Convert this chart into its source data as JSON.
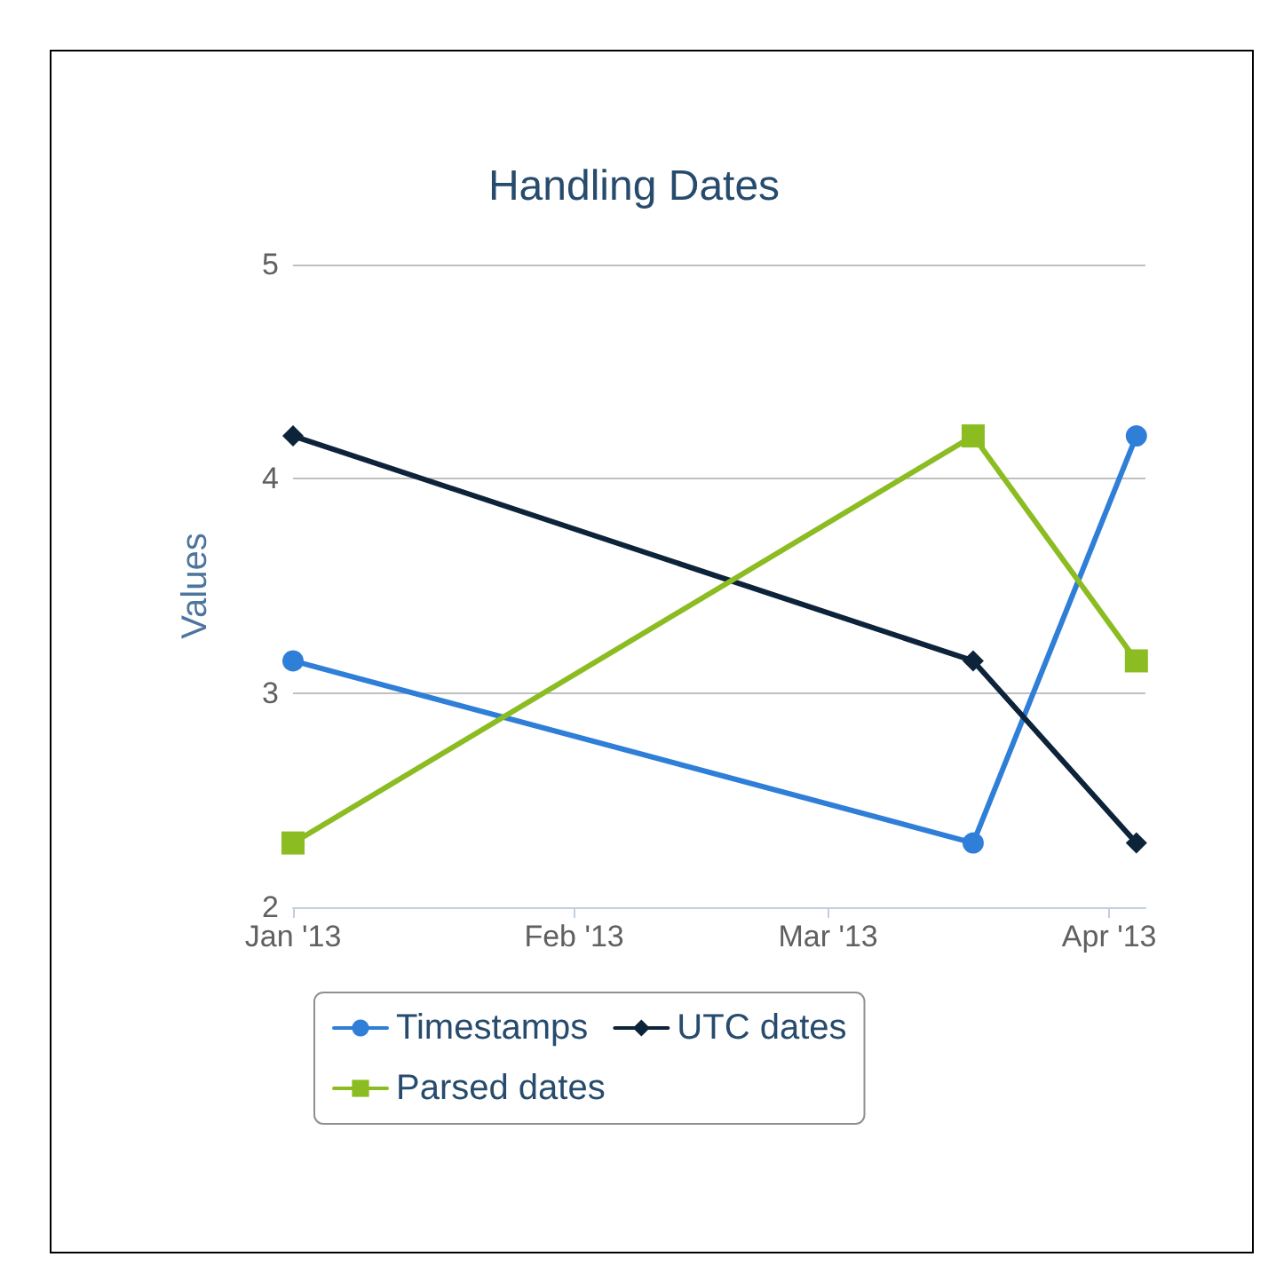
{
  "chart_data": {
    "type": "line",
    "title": "Handling Dates",
    "ylabel": "Values",
    "x": [
      "2013-01-01",
      "2013-03-17",
      "2013-04-04"
    ],
    "series": [
      {
        "name": "Timestamps",
        "color": "#2f7ed8",
        "marker": "circle",
        "values": [
          3.15,
          2.3,
          4.2
        ]
      },
      {
        "name": "UTC dates",
        "color": "#0d233a",
        "marker": "diamond",
        "values": [
          4.2,
          3.15,
          2.3
        ]
      },
      {
        "name": "Parsed dates",
        "color": "#8bbc21",
        "marker": "square",
        "values": [
          2.3,
          4.2,
          3.15
        ]
      }
    ],
    "xlim": [
      "2013-01-01",
      "2013-04-05"
    ],
    "xticks": [
      {
        "value": "2013-01-01",
        "label": "Jan '13"
      },
      {
        "value": "2013-02-01",
        "label": "Feb '13"
      },
      {
        "value": "2013-03-01",
        "label": "Mar '13"
      },
      {
        "value": "2013-04-01",
        "label": "Apr '13"
      }
    ],
    "ylim": [
      2,
      5
    ],
    "yticks": [
      2,
      3,
      4,
      5
    ],
    "grid": "y",
    "legend": "bottom"
  }
}
